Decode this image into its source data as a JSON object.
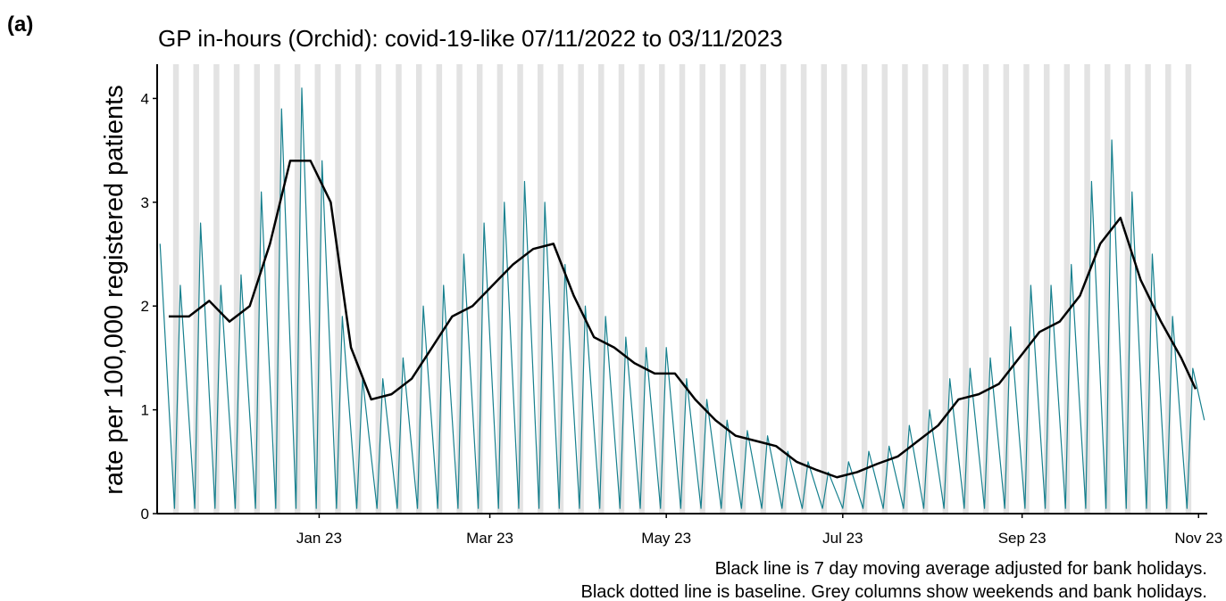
{
  "panel_label": "(a)",
  "chart_data": {
    "type": "line",
    "title": "GP in-hours (Orchid): covid-19-like 07/11/2022 to 03/11/2023",
    "y_label": "rate per 100,000 registered patients",
    "notes": [
      "Black line is 7 day moving average adjusted for bank holidays.",
      "Black dotted line is baseline. Grey columns show weekends and bank holidays."
    ],
    "xlim": [
      -1,
      362
    ],
    "xticks": [
      {
        "value": 55,
        "label": "Jan 23"
      },
      {
        "value": 114,
        "label": "Mar 23"
      },
      {
        "value": 175,
        "label": "May 23"
      },
      {
        "value": 236,
        "label": "Jul 23"
      },
      {
        "value": 298,
        "label": "Sep 23"
      },
      {
        "value": 359,
        "label": "Nov 23"
      }
    ],
    "ylim": [
      0,
      4.33
    ],
    "yticks": [
      0,
      1,
      2,
      3,
      4
    ],
    "weekend_color": "#e3e3e3",
    "series": [
      {
        "color": "#17808e",
        "width": 1.2,
        "x": [
          0,
          5,
          7,
          12,
          14,
          19,
          21,
          26,
          28,
          33,
          35,
          40,
          42,
          47,
          49,
          54,
          56,
          61,
          63,
          68,
          70,
          75,
          77,
          82,
          84,
          89,
          91,
          96,
          98,
          103,
          105,
          110,
          112,
          117,
          119,
          124,
          126,
          131,
          133,
          138,
          140,
          145,
          147,
          152,
          154,
          159,
          161,
          166,
          168,
          173,
          175,
          180,
          182,
          187,
          189,
          194,
          196,
          201,
          203,
          208,
          210,
          215,
          217,
          222,
          224,
          229,
          231,
          236,
          238,
          243,
          245,
          250,
          252,
          257,
          259,
          264,
          266,
          271,
          273,
          278,
          280,
          285,
          287,
          292,
          294,
          299,
          301,
          306,
          308,
          313,
          315,
          320,
          322,
          327,
          329,
          334,
          336,
          341,
          343,
          348,
          350,
          355,
          357,
          361
        ],
        "values": [
          2.6,
          0.05,
          2.2,
          0.05,
          2.8,
          0.05,
          2.2,
          0.05,
          2.3,
          0.05,
          3.1,
          0.05,
          3.9,
          0.05,
          4.1,
          0.05,
          3.4,
          0.05,
          1.9,
          0.05,
          1.3,
          0.05,
          1.3,
          0.05,
          1.5,
          0.05,
          2.0,
          0.05,
          2.2,
          0.05,
          2.5,
          0.05,
          2.8,
          0.05,
          3.0,
          0.05,
          3.2,
          0.05,
          3.0,
          0.05,
          2.4,
          0.05,
          2.0,
          0.05,
          1.9,
          0.05,
          1.7,
          0.05,
          1.6,
          0.05,
          1.6,
          0.05,
          1.3,
          0.05,
          1.1,
          0.05,
          0.9,
          0.05,
          0.8,
          0.05,
          0.75,
          0.05,
          0.6,
          0.05,
          0.5,
          0.05,
          0.4,
          0.05,
          0.5,
          0.05,
          0.6,
          0.05,
          0.65,
          0.05,
          0.85,
          0.05,
          1.0,
          0.05,
          1.3,
          0.05,
          1.4,
          0.05,
          1.5,
          0.05,
          1.8,
          0.05,
          2.2,
          0.05,
          2.2,
          0.05,
          2.4,
          0.05,
          3.2,
          0.05,
          3.6,
          0.05,
          3.1,
          0.05,
          2.5,
          0.05,
          1.9,
          0.05,
          1.4,
          0.9
        ]
      },
      {
        "color": "#000000",
        "width": 2.5,
        "x": [
          3,
          10,
          17,
          24,
          31,
          38,
          45,
          52,
          59,
          66,
          73,
          80,
          87,
          94,
          101,
          108,
          115,
          122,
          129,
          136,
          143,
          150,
          157,
          164,
          171,
          178,
          185,
          192,
          199,
          206,
          213,
          220,
          227,
          234,
          241,
          248,
          255,
          262,
          269,
          276,
          283,
          290,
          297,
          304,
          311,
          318,
          325,
          332,
          339,
          346,
          353,
          358
        ],
        "values": [
          1.9,
          1.9,
          2.05,
          1.85,
          2.0,
          2.6,
          3.4,
          3.4,
          3.0,
          1.6,
          1.1,
          1.15,
          1.3,
          1.6,
          1.9,
          2.0,
          2.2,
          2.4,
          2.55,
          2.6,
          2.1,
          1.7,
          1.6,
          1.45,
          1.35,
          1.35,
          1.1,
          0.9,
          0.75,
          0.7,
          0.65,
          0.5,
          0.42,
          0.35,
          0.4,
          0.48,
          0.55,
          0.7,
          0.85,
          1.1,
          1.15,
          1.25,
          1.5,
          1.75,
          1.85,
          2.1,
          2.6,
          2.85,
          2.25,
          1.85,
          1.5,
          1.2
        ]
      }
    ]
  }
}
